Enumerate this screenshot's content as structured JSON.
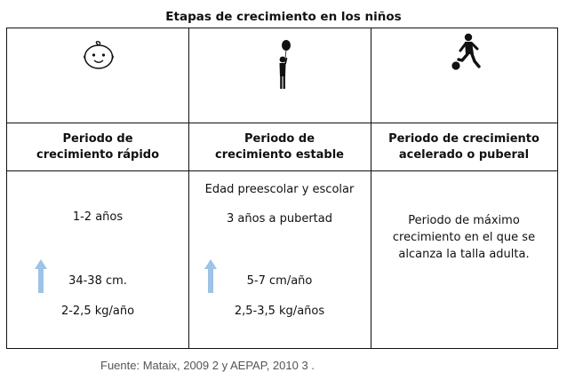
{
  "title": "Etapas de crecimiento en los niños",
  "columns": [
    {
      "icon": "baby-face-icon",
      "header": "Periodo de crecimiento rápido",
      "age": "1-2 años",
      "height_growth": "34-38 cm.",
      "weight_growth": "2-2,5 kg/año"
    },
    {
      "icon": "child-with-balloon-icon",
      "header": "Periodo de crecimiento estable",
      "stage": "Edad preescolar y escolar",
      "age": "3 años a pubertad",
      "height_growth": "5-7 cm/año",
      "weight_growth": "2,5-3,5 kg/años"
    },
    {
      "icon": "child-kicking-ball-icon",
      "header": "Periodo de crecimiento acelerado o puberal",
      "description": "Periodo de máximo crecimiento en el que se alcanza la talla adulta."
    }
  ],
  "arrow_color": "#9dc3e6",
  "source": "Fuente: Mataix, 2009 2 y AEPAP, 2010 3 ."
}
